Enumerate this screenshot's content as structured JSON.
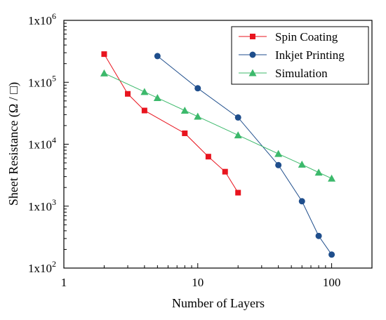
{
  "chart_data": {
    "type": "line",
    "xlabel": "Number of Layers",
    "ylabel": "Sheet Resistance (Ω / □)",
    "x_scale": "log",
    "y_scale": "log",
    "xlim": [
      1,
      200
    ],
    "ylim": [
      100,
      1000000
    ],
    "x_ticks": [
      {
        "value": 1,
        "label": "1"
      },
      {
        "value": 10,
        "label": "10"
      },
      {
        "value": 100,
        "label": "100"
      }
    ],
    "y_ticks": [
      {
        "value": 100,
        "base": "1x10",
        "exp": "2"
      },
      {
        "value": 1000,
        "base": "1x10",
        "exp": "3"
      },
      {
        "value": 10000,
        "base": "1x10",
        "exp": "4"
      },
      {
        "value": 100000,
        "base": "1x10",
        "exp": "5"
      },
      {
        "value": 1000000,
        "base": "1x10",
        "exp": "6"
      }
    ],
    "grid": false,
    "legend_position": "top-right",
    "series": [
      {
        "name": "Spin Coating",
        "color": "#e8141e",
        "marker": "square",
        "x": [
          2,
          3,
          4,
          8,
          12,
          16,
          20
        ],
        "y": [
          285000,
          65000,
          35000,
          15000,
          6300,
          3600,
          1650
        ]
      },
      {
        "name": "Inkjet Printing",
        "color": "#1f4e8c",
        "marker": "circle",
        "x": [
          5,
          10,
          20,
          40,
          60,
          80,
          100
        ],
        "y": [
          265000,
          80000,
          27000,
          4600,
          1200,
          330,
          165
        ]
      },
      {
        "name": "Simulation",
        "color": "#3cb96b",
        "marker": "triangle",
        "x": [
          2,
          4,
          5,
          8,
          10,
          20,
          40,
          60,
          80,
          100
        ],
        "y": [
          140000,
          70000,
          56000,
          35000,
          28000,
          14000,
          7000,
          4700,
          3500,
          2800
        ]
      }
    ]
  }
}
